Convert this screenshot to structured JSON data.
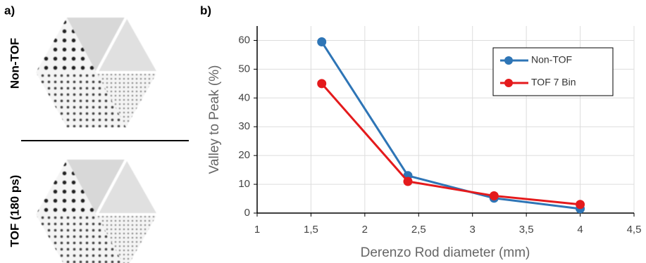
{
  "panel_a": {
    "label": "a)",
    "images": [
      {
        "label": "Non-TOF"
      },
      {
        "label": "TOF (180 ps)"
      }
    ]
  },
  "chart_data": {
    "type": "line",
    "panel_label": "b)",
    "x_label": "Derenzo Rod diameter (mm)",
    "y_label": "Valley to Peak (%)",
    "x": [
      1.6,
      2.4,
      3.2,
      4
    ],
    "series": [
      {
        "name": "Non-TOF",
        "color": "#2e75b6",
        "values": [
          59.5,
          13,
          5.2,
          1.5
        ]
      },
      {
        "name": "TOF 7 Bin",
        "color": "#e41a1c",
        "values": [
          45,
          11,
          6,
          3
        ]
      }
    ],
    "xlim": [
      1,
      4.5
    ],
    "xticks": [
      1,
      {
        "value": 1.5,
        "label": "1,5"
      },
      2,
      {
        "value": 2.5,
        "label": "2,5"
      },
      3,
      {
        "value": 3.5,
        "label": "3,5"
      },
      4,
      {
        "value": 4.5,
        "label": "4,5"
      }
    ],
    "ylim": [
      0,
      65
    ],
    "yticks": [
      0,
      10,
      20,
      30,
      40,
      50,
      60
    ],
    "grid": true,
    "legend": "upper right"
  }
}
